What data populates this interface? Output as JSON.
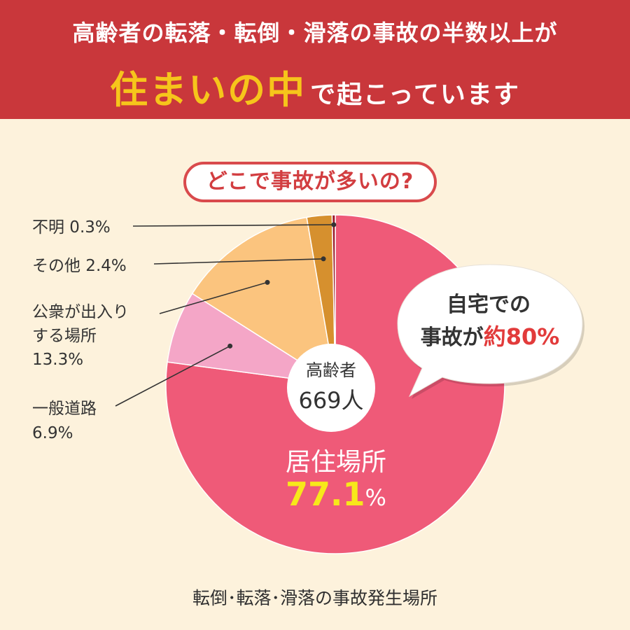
{
  "header": {
    "line1": "高齢者の転落・転倒・滑落の事故の半数以上が",
    "line2_emphasis": "住まいの中",
    "line2_rest": "で起こっています"
  },
  "question": "どこで事故が多いの?",
  "center": {
    "label": "高齢者",
    "count": "669人"
  },
  "bubble": {
    "line1": "自宅での",
    "line2_prefix": "事故が",
    "line2_emphasis": "約80%"
  },
  "caption": "転倒･転落･滑落の事故発生場所",
  "colors": {
    "header_bg": "#c9373b",
    "header_emphasis": "#f6c51b",
    "background": "#fdf2dc",
    "residence": "#ef5a78",
    "road": "#f4a6c7",
    "public": "#fbc47e",
    "other": "#d6902e",
    "unknown": "#9b1a2a",
    "value_highlight": "#f7e81a",
    "bubble_emphasis": "#e23b3b"
  },
  "chart_data": {
    "type": "pie",
    "title": "",
    "slices": [
      {
        "label": "居住場所",
        "value": 77.1,
        "value_text": "77.1",
        "unit": "%"
      },
      {
        "label": "一般道路",
        "value": 6.9,
        "value_text": "6.9%"
      },
      {
        "label": "公衆が出入りする場所",
        "label_lines": [
          "公衆が出入り",
          "する場所"
        ],
        "value": 13.3,
        "value_text": "13.3%"
      },
      {
        "label": "その他",
        "value": 2.4,
        "value_text": "2.4%"
      },
      {
        "label": "不明",
        "value": 0.3,
        "value_text": "0.3%"
      }
    ]
  }
}
